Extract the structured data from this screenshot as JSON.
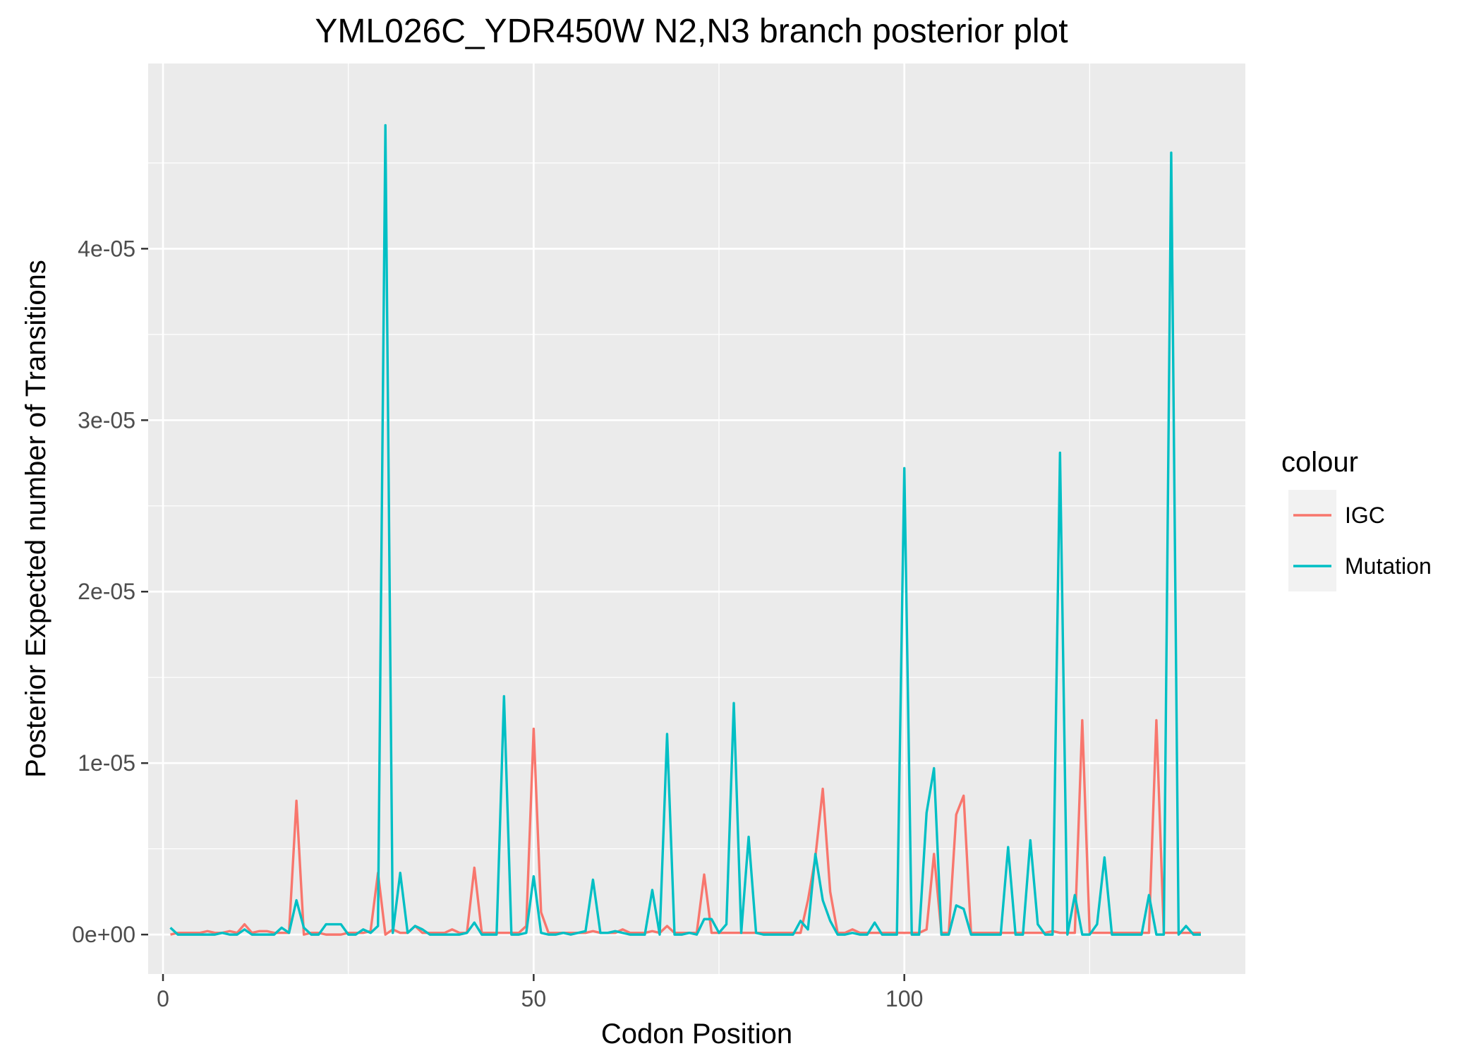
{
  "chart_data": {
    "type": "line",
    "title": "YML026C_YDR450W N2,N3 branch posterior plot",
    "xlabel": "Codon Position",
    "ylabel": "Posterior Expected number of Transitions",
    "xlim": [
      -2,
      146
    ],
    "ylim": [
      -2.3e-06,
      5.08e-05
    ],
    "x_ticks": [
      0,
      50,
      100
    ],
    "x_tick_labels": [
      "0",
      "50",
      "100"
    ],
    "y_ticks": [
      0,
      1e-05,
      2e-05,
      3e-05,
      4e-05
    ],
    "y_tick_labels": [
      "0e+00",
      "1e-05",
      "2e-05",
      "3e-05",
      "4e-05"
    ],
    "grid": true,
    "legend": {
      "title": "colour",
      "position": "right"
    },
    "series": [
      {
        "name": "IGC",
        "color": "#F8766D",
        "x": [
          1,
          2,
          3,
          4,
          5,
          6,
          7,
          8,
          9,
          10,
          11,
          12,
          13,
          14,
          15,
          16,
          17,
          18,
          19,
          20,
          21,
          22,
          23,
          24,
          25,
          26,
          27,
          28,
          29,
          30,
          31,
          32,
          33,
          34,
          35,
          36,
          37,
          38,
          39,
          40,
          41,
          42,
          43,
          44,
          45,
          46,
          47,
          48,
          49,
          50,
          51,
          52,
          53,
          54,
          55,
          56,
          57,
          58,
          59,
          60,
          61,
          62,
          63,
          64,
          65,
          66,
          67,
          68,
          69,
          70,
          71,
          72,
          73,
          74,
          75,
          76,
          77,
          78,
          79,
          80,
          81,
          82,
          83,
          84,
          85,
          86,
          87,
          88,
          89,
          90,
          91,
          92,
          93,
          94,
          95,
          96,
          97,
          98,
          99,
          100,
          101,
          102,
          103,
          104,
          105,
          106,
          107,
          108,
          109,
          110,
          111,
          112,
          113,
          114,
          115,
          116,
          117,
          118,
          119,
          120,
          121,
          122,
          123,
          124,
          125,
          126,
          127,
          128,
          129,
          130,
          131,
          132,
          133,
          134,
          135,
          136,
          137,
          138,
          139,
          140
        ],
        "values": [
          0,
          1e-07,
          1e-07,
          1e-07,
          1e-07,
          2e-07,
          1e-07,
          1e-07,
          2e-07,
          1e-07,
          6e-07,
          1e-07,
          2e-07,
          2e-07,
          1e-07,
          1e-07,
          1e-07,
          7.8e-06,
          0,
          1e-07,
          1e-07,
          0,
          0,
          0,
          1e-07,
          1e-07,
          1e-07,
          2e-07,
          3.6e-06,
          0,
          3e-07,
          1e-07,
          1e-07,
          5e-07,
          1e-07,
          1e-07,
          1e-07,
          1e-07,
          3e-07,
          1e-07,
          1e-07,
          3.9e-06,
          1e-07,
          1e-07,
          1e-07,
          1e-07,
          1e-07,
          1e-07,
          5e-07,
          1.2e-05,
          1.3e-06,
          1e-07,
          1e-07,
          1e-07,
          1e-07,
          1e-07,
          1e-07,
          2e-07,
          1e-07,
          1e-07,
          1e-07,
          3e-07,
          1e-07,
          1e-07,
          1e-07,
          2e-07,
          1e-07,
          5e-07,
          1e-07,
          1e-07,
          1e-07,
          1e-07,
          3.5e-06,
          1e-07,
          1e-07,
          1e-07,
          1e-07,
          1e-07,
          1e-07,
          1e-07,
          1e-07,
          1e-07,
          1e-07,
          1e-07,
          1e-07,
          1e-07,
          2e-06,
          4.5e-06,
          8.5e-06,
          2.5e-06,
          1e-07,
          1e-07,
          3e-07,
          1e-07,
          1e-07,
          1e-07,
          1e-07,
          1e-07,
          1e-07,
          1e-07,
          1e-07,
          1e-07,
          3e-07,
          4.7e-06,
          1e-07,
          1e-07,
          7e-06,
          8.1e-06,
          1e-07,
          1e-07,
          1e-07,
          1e-07,
          1e-07,
          1e-07,
          1e-07,
          1e-07,
          1e-07,
          1e-07,
          1e-07,
          2e-07,
          1e-07,
          1e-07,
          1e-07,
          1.25e-05,
          1e-07,
          1e-07,
          1e-07,
          1e-07,
          1e-07,
          1e-07,
          1e-07,
          1e-07,
          1e-07,
          1.25e-05,
          1e-07,
          1e-07,
          1e-07,
          1e-07,
          1e-07,
          1e-07
        ]
      },
      {
        "name": "Mutation",
        "color": "#00BFC4",
        "x": [
          1,
          2,
          3,
          4,
          5,
          6,
          7,
          8,
          9,
          10,
          11,
          12,
          13,
          14,
          15,
          16,
          17,
          18,
          19,
          20,
          21,
          22,
          23,
          24,
          25,
          26,
          27,
          28,
          29,
          30,
          31,
          32,
          33,
          34,
          35,
          36,
          37,
          38,
          39,
          40,
          41,
          42,
          43,
          44,
          45,
          46,
          47,
          48,
          49,
          50,
          51,
          52,
          53,
          54,
          55,
          56,
          57,
          58,
          59,
          60,
          61,
          62,
          63,
          64,
          65,
          66,
          67,
          68,
          69,
          70,
          71,
          72,
          73,
          74,
          75,
          76,
          77,
          78,
          79,
          80,
          81,
          82,
          83,
          84,
          85,
          86,
          87,
          88,
          89,
          90,
          91,
          92,
          93,
          94,
          95,
          96,
          97,
          98,
          99,
          100,
          101,
          102,
          103,
          104,
          105,
          106,
          107,
          108,
          109,
          110,
          111,
          112,
          113,
          114,
          115,
          116,
          117,
          118,
          119,
          120,
          121,
          122,
          123,
          124,
          125,
          126,
          127,
          128,
          129,
          130,
          131,
          132,
          133,
          134,
          135,
          136,
          137,
          138,
          139,
          140
        ],
        "values": [
          4e-07,
          0,
          0,
          0,
          0,
          0,
          0,
          1e-07,
          0,
          0,
          3e-07,
          0,
          0,
          0,
          0,
          4e-07,
          1e-07,
          2e-06,
          4e-07,
          0,
          0,
          6e-07,
          6e-07,
          6e-07,
          0,
          0,
          3e-07,
          1e-07,
          5e-07,
          4.72e-05,
          1e-07,
          3.6e-06,
          1e-07,
          5e-07,
          3e-07,
          0,
          0,
          0,
          0,
          0,
          1e-07,
          7e-07,
          0,
          0,
          0,
          1.39e-05,
          0,
          0,
          1e-07,
          3.4e-06,
          1e-07,
          0,
          0,
          1e-07,
          0,
          1e-07,
          2e-07,
          3.2e-06,
          1e-07,
          1e-07,
          2e-07,
          1e-07,
          0,
          0,
          0,
          2.6e-06,
          0,
          1.17e-05,
          0,
          0,
          1e-07,
          0,
          9e-07,
          9e-07,
          1e-07,
          6e-07,
          1.35e-05,
          1e-07,
          5.7e-06,
          1e-07,
          0,
          0,
          0,
          0,
          0,
          8e-07,
          3e-07,
          4.7e-06,
          2e-06,
          8e-07,
          0,
          0,
          1e-07,
          0,
          0,
          7e-07,
          0,
          0,
          0,
          2.72e-05,
          0,
          0,
          7.1e-06,
          9.7e-06,
          0,
          0,
          1.7e-06,
          1.5e-06,
          0,
          0,
          0,
          0,
          0,
          5.1e-06,
          0,
          0,
          5.5e-06,
          6e-07,
          0,
          0,
          2.81e-05,
          0,
          2.3e-06,
          0,
          0,
          6e-07,
          4.5e-06,
          0,
          0,
          0,
          0,
          0,
          2.3e-06,
          0,
          0,
          4.56e-05,
          0,
          5e-07,
          0,
          0
        ]
      }
    ]
  }
}
